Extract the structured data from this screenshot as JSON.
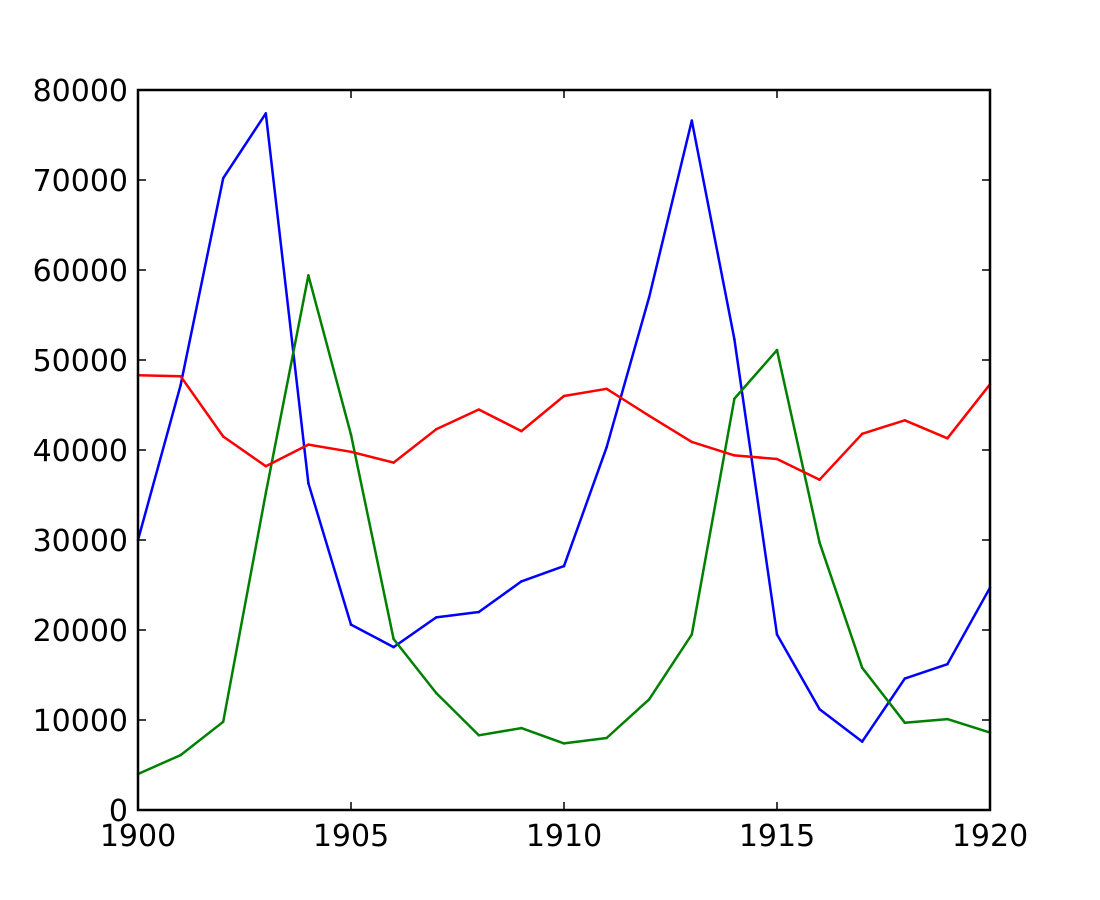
{
  "chart_data": {
    "type": "line",
    "title": "",
    "xlabel": "",
    "ylabel": "",
    "xlim": [
      1900,
      1920
    ],
    "ylim": [
      0,
      80000
    ],
    "grid": false,
    "legend": "none",
    "x": [
      1900,
      1901,
      1902,
      1903,
      1904,
      1905,
      1906,
      1907,
      1908,
      1909,
      1910,
      1911,
      1912,
      1913,
      1914,
      1915,
      1916,
      1917,
      1918,
      1919,
      1920
    ],
    "x_ticks": [
      1900,
      1905,
      1910,
      1915,
      1920
    ],
    "x_tick_labels": [
      "1900",
      "1905",
      "1910",
      "1915",
      "1920"
    ],
    "y_ticks": [
      0,
      10000,
      20000,
      30000,
      40000,
      50000,
      60000,
      70000,
      80000
    ],
    "y_tick_labels": [
      "0",
      "10000",
      "20000",
      "30000",
      "40000",
      "50000",
      "60000",
      "70000",
      "80000"
    ],
    "series": [
      {
        "color": "#0000ff",
        "values": [
          30000,
          47200,
          70200,
          77400,
          36300,
          20600,
          18100,
          21400,
          22000,
          25400,
          27100,
          40300,
          57000,
          76600,
          52300,
          19500,
          11200,
          7600,
          14600,
          16200,
          24700
        ]
      },
      {
        "color": "#008000",
        "values": [
          4000,
          6100,
          9800,
          35200,
          59400,
          41700,
          19000,
          13000,
          8300,
          9100,
          7400,
          8000,
          12300,
          19500,
          45700,
          51100,
          29700,
          15800,
          9700,
          10100,
          8600
        ]
      },
      {
        "color": "#ff0000",
        "values": [
          48300,
          48200,
          41500,
          38200,
          40600,
          39800,
          38600,
          42300,
          44500,
          42100,
          46000,
          46800,
          43800,
          40900,
          39400,
          39000,
          36700,
          41800,
          43300,
          41300,
          47300
        ]
      }
    ]
  }
}
